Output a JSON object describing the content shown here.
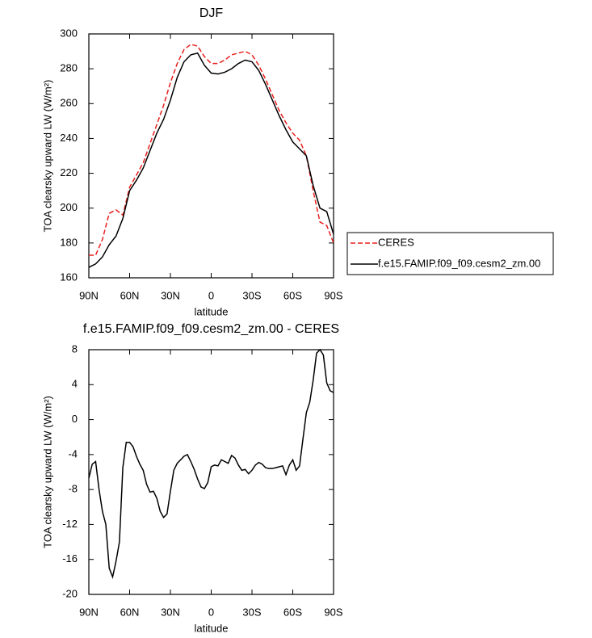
{
  "chart_data": [
    {
      "type": "line",
      "title": "DJF",
      "xlabel": "latitude",
      "ylabel": "TOA clearsky upward LW (W/m²)",
      "x": [
        90,
        85,
        80,
        75,
        70,
        65,
        60,
        55,
        50,
        45,
        40,
        35,
        30,
        25,
        20,
        15,
        10,
        5,
        0,
        -5,
        -10,
        -15,
        -20,
        -25,
        -30,
        -35,
        -40,
        -45,
        -50,
        -55,
        -60,
        -65,
        -70,
        -75,
        -80,
        -85,
        -90
      ],
      "xlim": [
        90,
        -90
      ],
      "xticks": [
        {
          "value": 90,
          "label": "90N"
        },
        {
          "value": 60,
          "label": "60N"
        },
        {
          "value": 30,
          "label": "30N"
        },
        0,
        {
          "value": -30,
          "label": "30S"
        },
        {
          "value": -60,
          "label": "60S"
        },
        {
          "value": -90,
          "label": "90S"
        }
      ],
      "ylim": [
        160,
        300
      ],
      "yticks": [
        160,
        180,
        200,
        220,
        240,
        260,
        280,
        300
      ],
      "legend": "right",
      "series": [
        {
          "name": "CERES",
          "color": "#e8201e",
          "style": "dashed",
          "values": [
            173,
            173,
            182,
            197,
            199,
            196,
            212,
            219,
            226,
            237,
            248,
            259,
            272,
            283,
            291,
            294,
            293,
            287,
            283,
            283,
            285,
            288,
            289,
            290,
            288,
            282,
            274,
            265,
            256,
            249,
            243,
            239,
            230,
            210,
            192,
            190,
            180
          ]
        },
        {
          "name": "f.e15.FAMIP.f09_f09.cesm2_zm.00",
          "color": "#000000",
          "style": "solid",
          "values": [
            166,
            168,
            172,
            179,
            184,
            194,
            210,
            216,
            223,
            233,
            243,
            251,
            262,
            275,
            284,
            288,
            289,
            282,
            277.5,
            277,
            278,
            280,
            283,
            285,
            284,
            279,
            271,
            262,
            253,
            245,
            238,
            234,
            230,
            213,
            200,
            198,
            185
          ]
        }
      ]
    },
    {
      "type": "line",
      "title": "f.e15.FAMIP.f09_f09.cesm2_zm.00 - CERES",
      "xlabel": "latitude",
      "ylabel": "TOA clearsky upward LW (W/m²)",
      "x": [
        90,
        87.5,
        85,
        82.5,
        80,
        77.5,
        75,
        72.5,
        70,
        67.5,
        65,
        62.5,
        60,
        57.5,
        55,
        52.5,
        50,
        47.5,
        45,
        42.5,
        40,
        37.5,
        35,
        32.5,
        30,
        27.5,
        25,
        22.5,
        20,
        17.5,
        15,
        12.5,
        10,
        7.5,
        5,
        2.5,
        0,
        -2.5,
        -5,
        -7.5,
        -10,
        -12.5,
        -15,
        -17.5,
        -20,
        -22.5,
        -25,
        -27.5,
        -30,
        -32.5,
        -35,
        -37.5,
        -40,
        -42.5,
        -45,
        -47.5,
        -50,
        -52.5,
        -55,
        -57.5,
        -60,
        -62.5,
        -65,
        -67.5,
        -70,
        -72.5,
        -75,
        -77.5,
        -80,
        -82.5,
        -85,
        -87.5,
        -90
      ],
      "xlim": [
        90,
        -90
      ],
      "xticks": [
        {
          "value": 90,
          "label": "90N"
        },
        {
          "value": 60,
          "label": "60N"
        },
        {
          "value": 30,
          "label": "30N"
        },
        0,
        {
          "value": -30,
          "label": "30S"
        },
        {
          "value": -60,
          "label": "60S"
        },
        {
          "value": -90,
          "label": "90S"
        }
      ],
      "ylim": [
        -20,
        8
      ],
      "yticks": [
        -20,
        -16,
        -12,
        -8,
        -4,
        0,
        4,
        8
      ],
      "series": [
        {
          "color": "#000000",
          "style": "solid",
          "values": [
            -6.7,
            -5.1,
            -4.8,
            -8,
            -10.5,
            -12,
            -17,
            -18,
            -16.2,
            -14,
            -5.5,
            -2.6,
            -2.6,
            -3.1,
            -4.2,
            -5.1,
            -5.8,
            -7.4,
            -8.3,
            -8.2,
            -9,
            -10.5,
            -11.2,
            -10.8,
            -8.2,
            -5.8,
            -5,
            -4.6,
            -4.2,
            -4,
            -4.8,
            -5.7,
            -6.8,
            -7.7,
            -7.9,
            -7.2,
            -5.4,
            -5.2,
            -5.3,
            -4.6,
            -4.8,
            -5,
            -4.1,
            -4.4,
            -5.2,
            -5.8,
            -5.7,
            -6.2,
            -5.8,
            -5.2,
            -4.9,
            -5.1,
            -5.5,
            -5.6,
            -5.6,
            -5.5,
            -5.4,
            -5.3,
            -6.3,
            -5.2,
            -4.6,
            -5.8,
            -5.3,
            -2.2,
            0.8,
            2,
            4.5,
            7.6,
            8,
            7.4,
            4.2,
            3.3,
            3.1
          ]
        }
      ]
    }
  ]
}
